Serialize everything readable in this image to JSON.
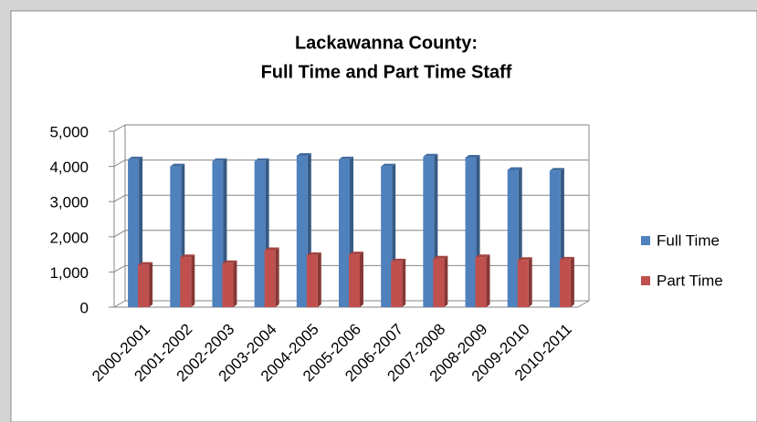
{
  "chart_data": {
    "type": "bar",
    "title": [
      "Lackawanna County:",
      "Full Time and Part Time Staff"
    ],
    "categories": [
      "2000-2001",
      "2001-2002",
      "2002-2003",
      "2003-2004",
      "2004-2005",
      "2005-2006",
      "2006-2007",
      "2007-2008",
      "2008-2009",
      "2009-2010",
      "2010-2011"
    ],
    "series": [
      {
        "name": "Full Time",
        "color": "#4f81bd",
        "values": [
          4200,
          4000,
          4150,
          4150,
          4300,
          4200,
          4000,
          4280,
          4250,
          3900,
          3880
        ]
      },
      {
        "name": "Part Time",
        "color": "#c0504d",
        "values": [
          1200,
          1420,
          1250,
          1620,
          1480,
          1500,
          1300,
          1380,
          1420,
          1340,
          1350
        ]
      }
    ],
    "ylim": [
      0,
      5000
    ],
    "yticks": [
      0,
      {
        "value": 1000,
        "label": "1,000"
      },
      {
        "value": 2000,
        "label": "2,000"
      },
      {
        "value": 3000,
        "label": "3,000"
      },
      {
        "value": 4000,
        "label": "4,000"
      },
      {
        "value": 5000,
        "label": "5,000"
      }
    ],
    "grid": true,
    "legend": "right"
  }
}
